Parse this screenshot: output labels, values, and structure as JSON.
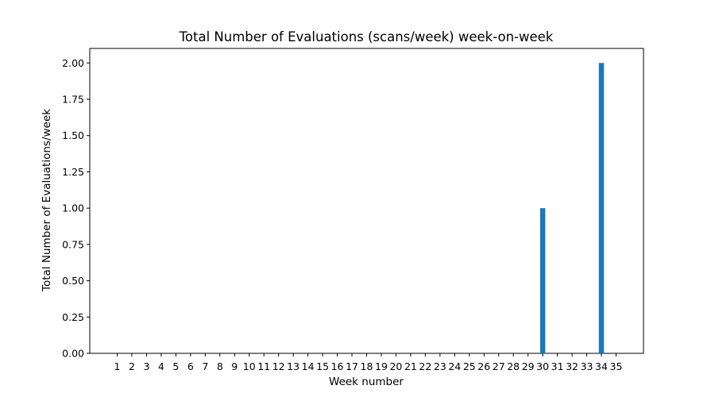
{
  "chart_data": {
    "type": "bar",
    "title": "Total Number of Evaluations (scans/week) week-on-week",
    "xlabel": "Week number",
    "ylabel": "Total Number of Evaluations/week",
    "categories": [
      "1",
      "2",
      "3",
      "4",
      "5",
      "6",
      "7",
      "8",
      "9",
      "10",
      "11",
      "12",
      "13",
      "14",
      "15",
      "16",
      "17",
      "18",
      "19",
      "20",
      "21",
      "22",
      "23",
      "24",
      "25",
      "26",
      "27",
      "28",
      "29",
      "30",
      "31",
      "32",
      "33",
      "34",
      "35"
    ],
    "values": [
      0,
      0,
      0,
      0,
      0,
      0,
      0,
      0,
      0,
      0,
      0,
      0,
      0,
      0,
      0,
      0,
      0,
      0,
      0,
      0,
      0,
      0,
      0,
      0,
      0,
      0,
      0,
      0,
      0,
      1,
      0,
      0,
      0,
      2,
      0
    ],
    "ylim": [
      0,
      2.1
    ],
    "yticks": [
      "0.00",
      "0.25",
      "0.50",
      "0.75",
      "1.00",
      "1.25",
      "1.50",
      "1.75",
      "2.00"
    ],
    "grid": false,
    "bar_color": "#1f77b4"
  }
}
